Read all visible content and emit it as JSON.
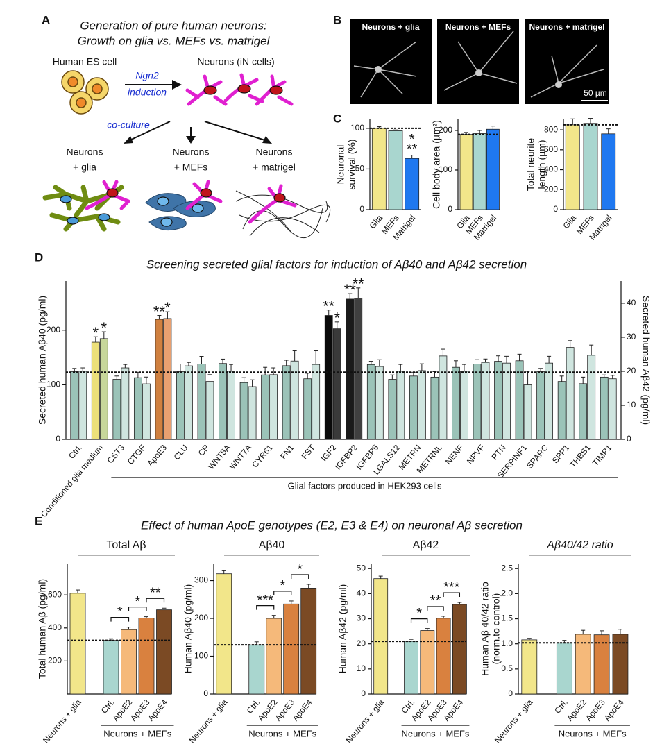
{
  "panels": {
    "labels": [
      "A",
      "B",
      "C",
      "D",
      "E"
    ]
  },
  "panel_a": {
    "title": [
      "Generation of pure human neurons:",
      "Growth on glia vs. MEFs vs. matrigel"
    ],
    "source": "Human ES cell",
    "target": "Neurons (iN cells)",
    "arrow_label": [
      "Ngn2",
      "induction"
    ],
    "coculture": "co-culture",
    "conditions": [
      [
        "Neurons",
        "+ glia"
      ],
      [
        "Neurons",
        "+ MEFs"
      ],
      [
        "Neurons",
        "+ matrigel"
      ]
    ]
  },
  "panel_b": {
    "images": [
      "Neurons + glia",
      "Neurons + MEFs",
      "Neurons + matrigel"
    ],
    "scale_bar": "50 µm"
  },
  "panel_e_title": "Effect of human ApoE genotypes (E2, E3 & E4) on neuronal Aβ secretion",
  "chart_data": [
    {
      "type": "bar",
      "ylabel": [
        "Neuronal",
        "survival (%)"
      ],
      "categories": [
        "Glia",
        "MEFs",
        "Matrigel"
      ],
      "values": [
        100,
        97,
        63
      ],
      "errors": [
        2,
        1,
        4
      ],
      "colors": [
        "#f2e68a",
        "#a9d6cf",
        "#1f78f0"
      ],
      "ylim": [
        0,
        111
      ],
      "yticks": [
        0,
        50,
        100
      ],
      "reference": 100,
      "significance": [
        null,
        null,
        [
          "*",
          "**"
        ]
      ]
    },
    {
      "type": "bar",
      "ylabel": "Cell body area (µm²)",
      "categories": [
        "Glia",
        "MEFs",
        "Matrigel"
      ],
      "values": [
        190,
        192,
        203
      ],
      "errors": [
        5,
        8,
        8
      ],
      "colors": [
        "#f2e68a",
        "#a9d6cf",
        "#1f78f0"
      ],
      "ylim": [
        0,
        228
      ],
      "yticks": [
        0,
        100,
        200
      ],
      "reference": 190
    },
    {
      "type": "bar",
      "ylabel": [
        "Total neurite",
        "length (µm)"
      ],
      "categories": [
        "Glia",
        "MEFs",
        "Matrigel"
      ],
      "values": [
        850,
        865,
        760
      ],
      "errors": [
        60,
        50,
        50
      ],
      "colors": [
        "#f2e68a",
        "#a9d6cf",
        "#1f78f0"
      ],
      "ylim": [
        0,
        905
      ],
      "yticks": [
        0,
        200,
        400,
        600,
        800
      ],
      "reference": 850
    },
    {
      "type": "grouped-bar",
      "title": "Screening secreted glial factors for induction of Aβ40 and Aβ42 secretion",
      "ylabel": "Secreted human Aβ40 (pg/ml)",
      "y2label": "Secreted human Aβ42 (pg/ml)",
      "categories": [
        "Ctrl.",
        "Conditioned glia medium",
        "CST3",
        "CTGF",
        "ApoE3",
        "CLU",
        "CP",
        "WNT5A",
        "WNT7A",
        "CYR61",
        "FN1",
        "FST",
        "IGF2",
        "IGFBP2",
        "IGFBP5",
        "LGALS12",
        "METRN",
        "METRNL",
        "NENF",
        "NPVF",
        "PTN",
        "SERPINF1",
        "SPARC",
        "SPP1",
        "THBS1",
        "TIMP1"
      ],
      "ylim": [
        0,
        290
      ],
      "yticks": [
        0,
        100,
        200
      ],
      "y2lim": [
        0,
        46.5
      ],
      "y2ticks": [
        0,
        10,
        20,
        30,
        40
      ],
      "reference": 123,
      "group": {
        "label": "Glial factors produced in HEK293 cells",
        "from": 2,
        "to": 25
      },
      "series": [
        {
          "axis": "y",
          "values": [
            124,
            178,
            110,
            113,
            220,
            124,
            138,
            139,
            104,
            118,
            135,
            111,
            227,
            257,
            137,
            110,
            116,
            114,
            132,
            138,
            143,
            144,
            124,
            106,
            102,
            114
          ],
          "errors": [
            6,
            10,
            6,
            10,
            7,
            14,
            14,
            8,
            9,
            14,
            10,
            10,
            10,
            10,
            6,
            8,
            7,
            10,
            12,
            8,
            10,
            12,
            6,
            10,
            12,
            4
          ],
          "colors": [
            "#9bc3b8",
            "#ece07a",
            "#9bc3b8",
            "#9bc3b8",
            "#d0803f",
            "#9bc3b8",
            "#9bc3b8",
            "#9bc3b8",
            "#9bc3b8",
            "#9bc3b8",
            "#9bc3b8",
            "#9bc3b8",
            "#0a0a0a",
            "#1a1a1a",
            "#9bc3b8",
            "#9bc3b8",
            "#9bc3b8",
            "#9bc3b8",
            "#9bc3b8",
            "#9bc3b8",
            "#9bc3b8",
            "#9bc3b8",
            "#9bc3b8",
            "#9bc3b8",
            "#9bc3b8",
            "#9bc3b8"
          ],
          "significance": [
            null,
            "*",
            null,
            null,
            "**",
            null,
            null,
            null,
            null,
            null,
            null,
            null,
            "**",
            "**",
            null,
            null,
            null,
            null,
            null,
            null,
            null,
            null,
            null,
            null,
            null,
            null
          ]
        },
        {
          "axis": "y2",
          "values": [
            20,
            29.6,
            21,
            16.3,
            35.5,
            21.6,
            17,
            20,
            15.5,
            19,
            23,
            22,
            32.5,
            41.5,
            21.4,
            20,
            20.2,
            24.5,
            20,
            22.6,
            22.4,
            16,
            22.4,
            27,
            24.7,
            17.8
          ],
          "errors": [
            1,
            2,
            1,
            2,
            2,
            1,
            2,
            2,
            2,
            2,
            3,
            4,
            2,
            3,
            2,
            2,
            2,
            2,
            2,
            1,
            2,
            4,
            2,
            2,
            3,
            1
          ],
          "colors": [
            "#cfe5df",
            "#c7d79a",
            "#cfe5df",
            "#cfe5df",
            "#e8a070",
            "#cfe5df",
            "#cfe5df",
            "#cfe5df",
            "#cfe5df",
            "#cfe5df",
            "#cfe5df",
            "#cfe5df",
            "#3a3a3a",
            "#404040",
            "#cfe5df",
            "#cfe5df",
            "#cfe5df",
            "#cfe5df",
            "#cfe5df",
            "#cfe5df",
            "#cfe5df",
            "#cfe5df",
            "#cfe5df",
            "#cfe5df",
            "#cfe5df",
            "#cfe5df"
          ],
          "significance": [
            null,
            "*",
            null,
            null,
            "*",
            null,
            null,
            null,
            null,
            null,
            null,
            null,
            "*",
            "**",
            null,
            null,
            null,
            null,
            null,
            null,
            null,
            null,
            null,
            null,
            null,
            null
          ]
        }
      ]
    },
    {
      "type": "bar",
      "subtitle": "Total Aβ",
      "ylabel": "Total human Aβ (pg/ml)",
      "categories": [
        "Neurons + glia",
        "Ctrl.",
        "ApoE2",
        "ApoE3",
        "ApoE4"
      ],
      "values": [
        610,
        325,
        390,
        460,
        510
      ],
      "errors": [
        20,
        10,
        15,
        8,
        10
      ],
      "colors": [
        "#f2e68a",
        "#a9d6cf",
        "#f5b97a",
        "#d9813f",
        "#7b4a24"
      ],
      "ylim": [
        0,
        790
      ],
      "yticks": [
        200,
        400,
        600
      ],
      "reference": 325,
      "group": {
        "label": "Neurons + MEFs",
        "from": 1,
        "to": 4
      },
      "brackets": [
        {
          "between": [
            1,
            2
          ],
          "label": "*"
        },
        {
          "between": [
            2,
            3
          ],
          "label": "*"
        },
        {
          "between": [
            3,
            4
          ],
          "label": "**"
        }
      ]
    },
    {
      "type": "bar",
      "subtitle": "Aβ40",
      "ylabel": "Human Aβ40 (pg/ml)",
      "categories": [
        "Neurons + glia",
        "Ctrl.",
        "ApoE2",
        "ApoE3",
        "ApoE4"
      ],
      "values": [
        318,
        130,
        200,
        238,
        280
      ],
      "errors": [
        8,
        8,
        8,
        8,
        10
      ],
      "colors": [
        "#f2e68a",
        "#a9d6cf",
        "#f5b97a",
        "#d9813f",
        "#7b4a24"
      ],
      "ylim": [
        0,
        345
      ],
      "yticks": [
        0,
        100,
        200,
        300
      ],
      "reference": 130,
      "group": {
        "label": "Neurons + MEFs",
        "from": 1,
        "to": 4
      },
      "brackets": [
        {
          "between": [
            1,
            2
          ],
          "label": "***"
        },
        {
          "between": [
            2,
            3
          ],
          "label": "*"
        },
        {
          "between": [
            3,
            4
          ],
          "label": "*"
        }
      ]
    },
    {
      "type": "bar",
      "subtitle": "Aβ42",
      "ylabel": "Human Aβ42 (pg/ml)",
      "categories": [
        "Neurons + glia",
        "Ctrl.",
        "ApoE2",
        "ApoE3",
        "ApoE4"
      ],
      "values": [
        46,
        21,
        25.3,
        30.2,
        35.7
      ],
      "errors": [
        1,
        0.8,
        0.8,
        0.8,
        0.8
      ],
      "colors": [
        "#f2e68a",
        "#a9d6cf",
        "#f5b97a",
        "#d9813f",
        "#7b4a24"
      ],
      "ylim": [
        0,
        52
      ],
      "yticks": [
        0,
        10,
        20,
        30,
        40,
        50
      ],
      "reference": 21,
      "group": {
        "label": "Neurons + MEFs",
        "from": 1,
        "to": 4
      },
      "brackets": [
        {
          "between": [
            1,
            2
          ],
          "label": "*"
        },
        {
          "between": [
            2,
            3
          ],
          "label": "**"
        },
        {
          "between": [
            3,
            4
          ],
          "label": "***"
        }
      ]
    },
    {
      "type": "bar",
      "subtitle": "Aβ40/42 ratio",
      "ylabel": [
        "Human Aβ 40/42 ratio",
        "(norm.to control)"
      ],
      "categories": [
        "Neurons + glia",
        "Ctrl.",
        "ApoE2",
        "ApoE3",
        "ApoE4"
      ],
      "values": [
        1.08,
        1.02,
        1.19,
        1.18,
        1.19
      ],
      "errors": [
        0.03,
        0.05,
        0.08,
        0.08,
        0.1
      ],
      "colors": [
        "#f2e68a",
        "#a9d6cf",
        "#f5b97a",
        "#d9813f",
        "#7b4a24"
      ],
      "ylim": [
        0,
        2.6
      ],
      "yticks": [
        0,
        0.5,
        {
          "value": 1,
          "label": "1.0"
        },
        1.5,
        {
          "value": 2,
          "label": "2.0"
        },
        2.5
      ],
      "reference": 1.02,
      "group": {
        "label": "Neurons + MEFs",
        "from": 1,
        "to": 4
      }
    }
  ]
}
